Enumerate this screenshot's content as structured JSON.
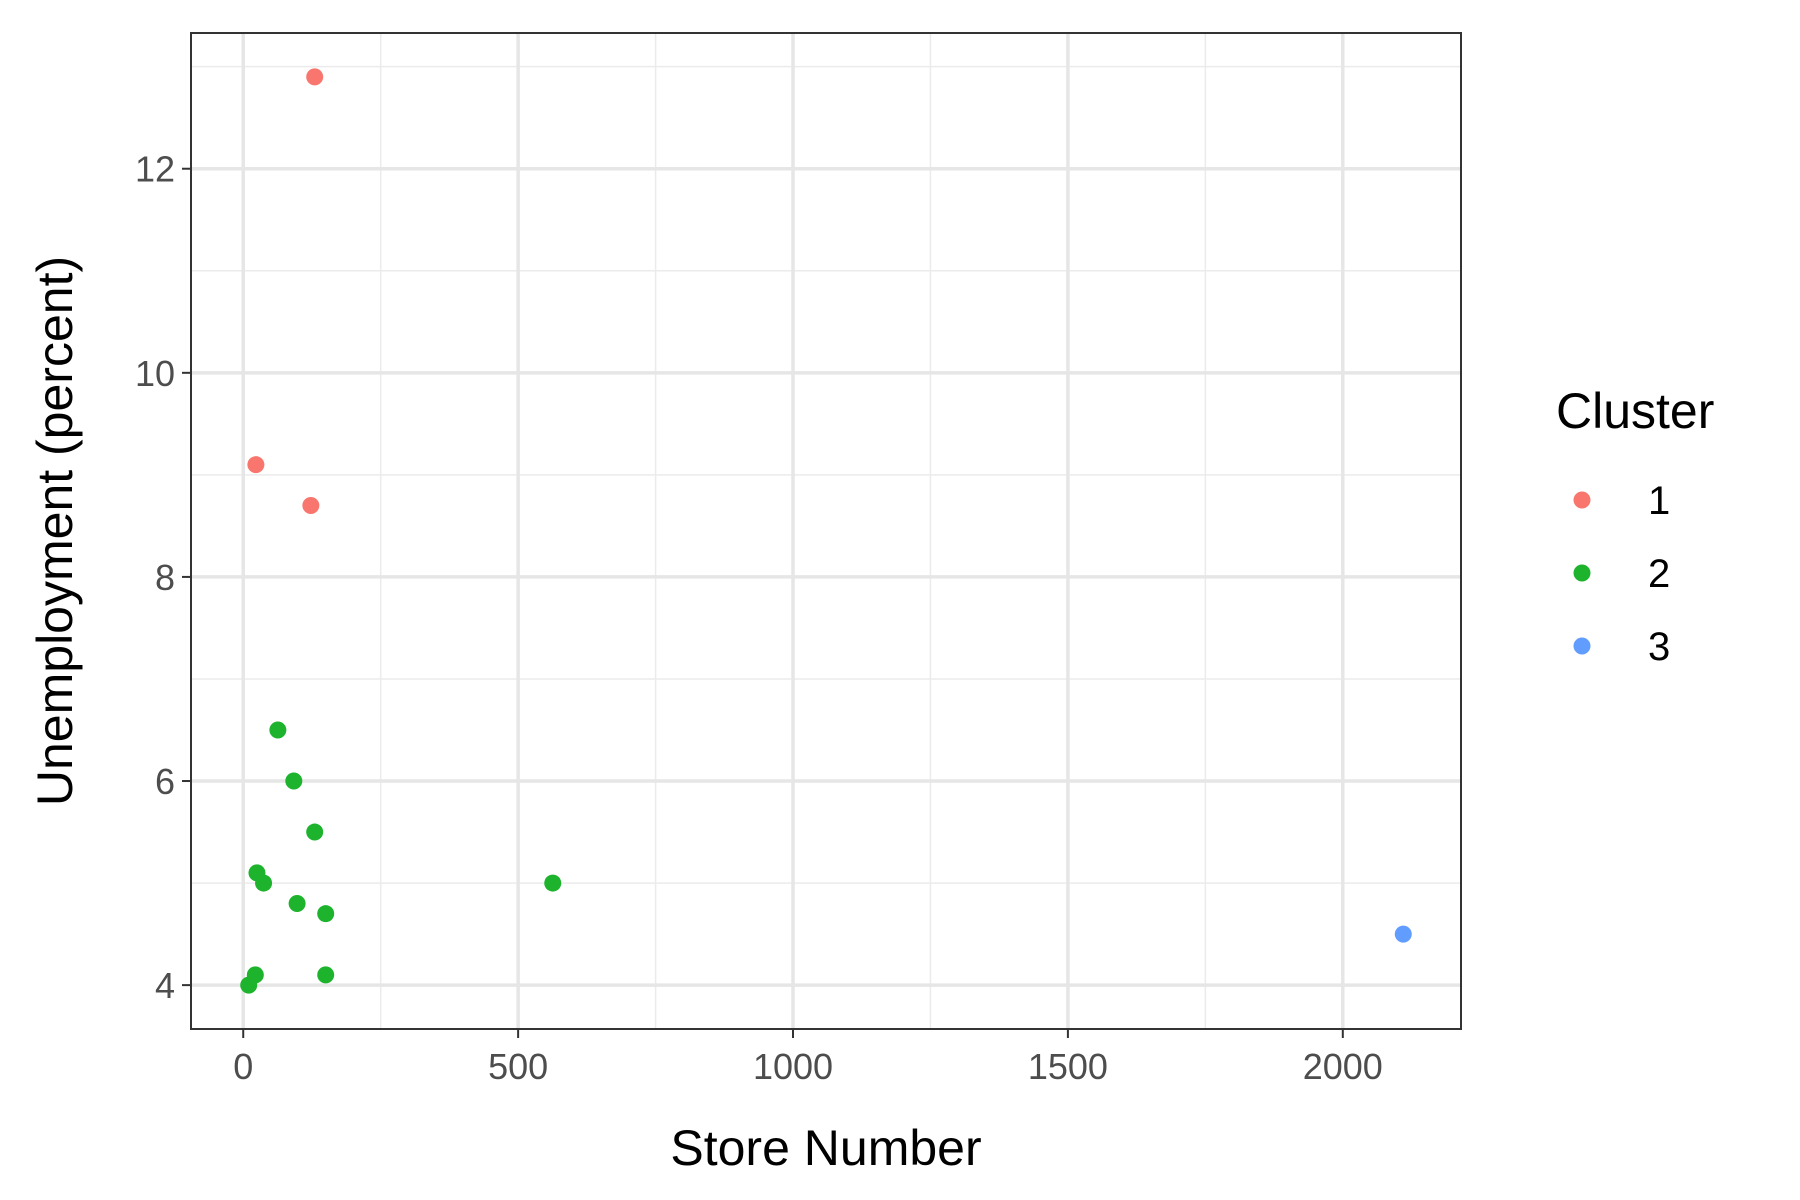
{
  "chart_data": {
    "type": "scatter",
    "xlabel": "Store Number",
    "ylabel": "Unemployment (percent)",
    "xlim": [
      -95,
      2215
    ],
    "ylim": [
      3.57,
      13.33
    ],
    "x_ticks": [
      0,
      500,
      1000,
      1500,
      2000
    ],
    "x_tick_labels": [
      "0",
      "500",
      "1000",
      "1500",
      "2000"
    ],
    "y_ticks": [
      4,
      6,
      8,
      10,
      12
    ],
    "y_tick_labels": [
      "4",
      "6",
      "8",
      "10",
      "12"
    ],
    "x_minor_ticks": [
      250,
      750,
      1250,
      1750
    ],
    "y_minor_ticks": [
      5,
      7,
      9,
      11,
      13
    ],
    "grid": true,
    "legend": {
      "title": "Cluster",
      "position": "right"
    },
    "series": [
      {
        "name": "1",
        "color": "#F8766D",
        "points": [
          [
            130,
            12.9
          ],
          [
            23,
            9.1
          ],
          [
            123,
            8.7
          ]
        ]
      },
      {
        "name": "2",
        "color": "#1DB32D",
        "points": [
          [
            63,
            6.5
          ],
          [
            92,
            6.0
          ],
          [
            130,
            5.5
          ],
          [
            25,
            5.1
          ],
          [
            37,
            5.0
          ],
          [
            563,
            5.0
          ],
          [
            98,
            4.8
          ],
          [
            150,
            4.7
          ],
          [
            22,
            4.1
          ],
          [
            150,
            4.1
          ],
          [
            10,
            4.0
          ]
        ]
      },
      {
        "name": "3",
        "color": "#619CFF",
        "points": [
          [
            2110,
            4.5
          ]
        ]
      }
    ]
  }
}
